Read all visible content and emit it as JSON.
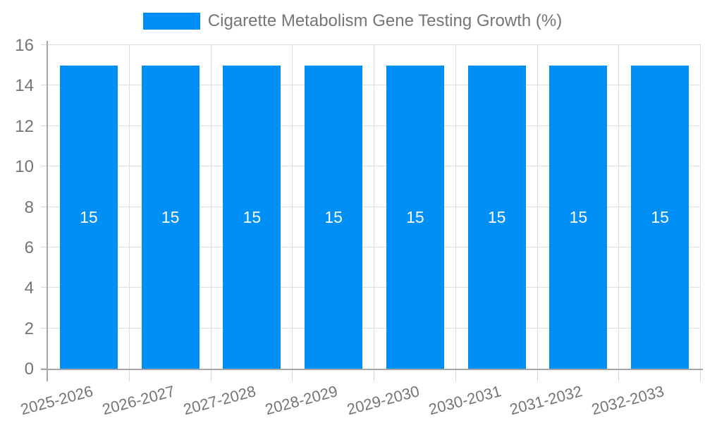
{
  "chart_data": {
    "type": "bar",
    "title": "Cigarette Metabolism Gene Testing Growth (%)",
    "categories": [
      "2025-2026",
      "2026-2027",
      "2027-2028",
      "2028-2029",
      "2029-2030",
      "2030-2031",
      "2031-2032",
      "2032-2033"
    ],
    "series": [
      {
        "name": "Cigarette Metabolism Gene Testing Growth (%)",
        "values": [
          15,
          15,
          15,
          15,
          15,
          15,
          15,
          15
        ]
      }
    ],
    "values": [
      15,
      15,
      15,
      15,
      15,
      15,
      15,
      15
    ],
    "bar_value_labels": [
      "15",
      "15",
      "15",
      "15",
      "15",
      "15",
      "15",
      "15"
    ],
    "xlabel": "",
    "ylabel": "",
    "ylim": [
      0,
      16
    ],
    "yticks": [
      0,
      2,
      4,
      6,
      8,
      10,
      12,
      14,
      16
    ],
    "grid": true,
    "legend_position": "top"
  },
  "colors": {
    "bar": "#008FF5",
    "gridline": "#DEDEDE",
    "tick": "#D6D6D6",
    "axis_line": "#A6A6A6",
    "axis_label": "#757575",
    "legend_text": "#757575",
    "value_label": "#FFFFFF"
  }
}
